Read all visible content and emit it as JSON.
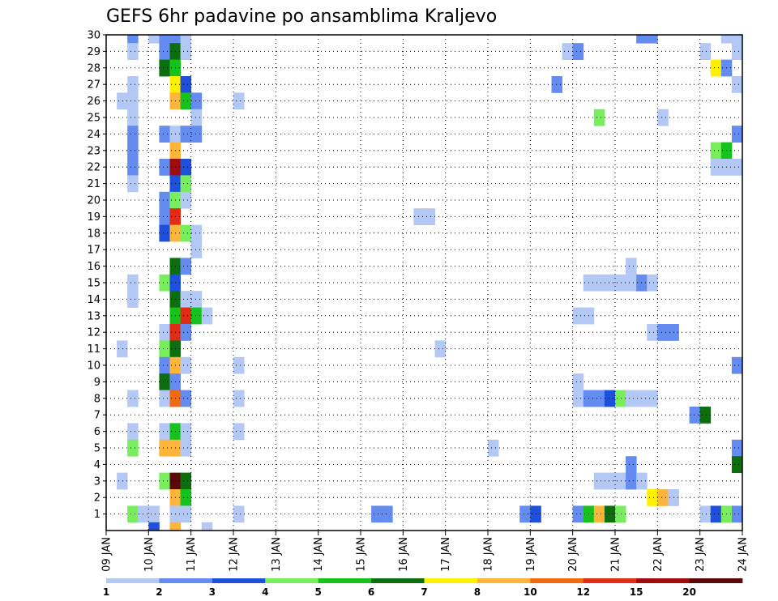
{
  "chart_data": {
    "type": "heatmap",
    "title": "GEFS 6hr padavine po ansamblima Kraljevo",
    "xlabel": "",
    "ylabel": "",
    "x_ticks": [
      "09 JAN",
      "10 JAN",
      "11 JAN",
      "12 JAN",
      "13 JAN",
      "14 JAN",
      "15 JAN",
      "16 JAN",
      "17 JAN",
      "18 JAN",
      "19 JAN",
      "20 JAN",
      "21 JAN",
      "22 JAN",
      "23 JAN",
      "24 JAN"
    ],
    "xlim": [
      0,
      60
    ],
    "y_ticks": [
      "1",
      "2",
      "3",
      "4",
      "5",
      "6",
      "7",
      "8",
      "9",
      "10",
      "11",
      "12",
      "13",
      "14",
      "15",
      "16",
      "17",
      "18",
      "19",
      "20",
      "21",
      "22",
      "23",
      "24",
      "25",
      "26",
      "27",
      "28",
      "29",
      "30"
    ],
    "ylim": [
      0,
      30
    ],
    "grid": true,
    "colorbar": {
      "labels": [
        "1",
        "2",
        "3",
        "4",
        "5",
        "6",
        "7",
        "8",
        "10",
        "12",
        "15",
        "20"
      ],
      "colors": [
        "#b4c8f5",
        "#648cf0",
        "#1e50dc",
        "#78ee5c",
        "#16c21c",
        "#0c6e0e",
        "#fff000",
        "#ffb43a",
        "#f06a10",
        "#e02c14",
        "#a00c0c",
        "#5a0808"
      ]
    },
    "cells": [
      [
        2,
        30,
        2
      ],
      [
        4,
        30,
        1
      ],
      [
        5,
        30,
        2
      ],
      [
        6,
        30,
        2
      ],
      [
        7,
        30,
        1
      ],
      [
        50,
        30,
        2
      ],
      [
        51,
        30,
        2
      ],
      [
        58,
        30,
        1
      ],
      [
        59,
        30,
        1
      ],
      [
        2,
        29,
        1
      ],
      [
        5,
        29,
        2
      ],
      [
        6,
        29,
        6
      ],
      [
        7,
        29,
        1
      ],
      [
        43,
        29,
        1
      ],
      [
        44,
        29,
        2
      ],
      [
        56,
        29,
        1
      ],
      [
        59,
        29,
        1
      ],
      [
        5,
        28,
        6
      ],
      [
        6,
        28,
        5
      ],
      [
        57,
        28,
        7
      ],
      [
        58,
        28,
        2
      ],
      [
        2,
        27,
        1
      ],
      [
        6,
        27,
        7
      ],
      [
        7,
        27,
        3
      ],
      [
        42,
        27,
        2
      ],
      [
        59,
        27,
        1
      ],
      [
        1,
        26,
        1
      ],
      [
        2,
        26,
        1
      ],
      [
        6,
        26,
        8
      ],
      [
        7,
        26,
        5
      ],
      [
        8,
        26,
        2
      ],
      [
        12,
        26,
        1
      ],
      [
        2,
        25,
        1
      ],
      [
        8,
        25,
        1
      ],
      [
        46,
        25,
        4
      ],
      [
        52,
        25,
        1
      ],
      [
        2,
        24,
        2
      ],
      [
        5,
        24,
        2
      ],
      [
        6,
        24,
        1
      ],
      [
        7,
        24,
        2
      ],
      [
        8,
        24,
        2
      ],
      [
        59,
        24,
        2
      ],
      [
        2,
        23,
        2
      ],
      [
        6,
        23,
        8
      ],
      [
        57,
        23,
        4
      ],
      [
        58,
        23,
        5
      ],
      [
        2,
        22,
        2
      ],
      [
        5,
        22,
        2
      ],
      [
        6,
        22,
        11
      ],
      [
        7,
        22,
        3
      ],
      [
        57,
        22,
        1
      ],
      [
        58,
        22,
        1
      ],
      [
        59,
        22,
        1
      ],
      [
        2,
        21,
        1
      ],
      [
        6,
        21,
        3
      ],
      [
        7,
        21,
        4
      ],
      [
        5,
        20,
        2
      ],
      [
        6,
        20,
        4
      ],
      [
        7,
        20,
        1
      ],
      [
        5,
        19,
        2
      ],
      [
        6,
        19,
        10
      ],
      [
        29,
        19,
        1
      ],
      [
        30,
        19,
        1
      ],
      [
        5,
        18,
        3
      ],
      [
        6,
        18,
        8
      ],
      [
        7,
        18,
        4
      ],
      [
        8,
        18,
        1
      ],
      [
        8,
        17,
        1
      ],
      [
        6,
        16,
        6
      ],
      [
        7,
        16,
        2
      ],
      [
        49,
        16,
        1
      ],
      [
        2,
        15,
        1
      ],
      [
        5,
        15,
        4
      ],
      [
        6,
        15,
        3
      ],
      [
        45,
        15,
        1
      ],
      [
        46,
        15,
        1
      ],
      [
        47,
        15,
        1
      ],
      [
        48,
        15,
        1
      ],
      [
        49,
        15,
        1
      ],
      [
        50,
        15,
        2
      ],
      [
        51,
        15,
        1
      ],
      [
        2,
        14,
        1
      ],
      [
        6,
        14,
        6
      ],
      [
        7,
        14,
        1
      ],
      [
        8,
        14,
        1
      ],
      [
        6,
        13,
        5
      ],
      [
        7,
        13,
        10
      ],
      [
        8,
        13,
        5
      ],
      [
        9,
        13,
        1
      ],
      [
        44,
        13,
        1
      ],
      [
        45,
        13,
        1
      ],
      [
        5,
        12,
        1
      ],
      [
        6,
        12,
        10
      ],
      [
        7,
        12,
        2
      ],
      [
        51,
        12,
        1
      ],
      [
        52,
        12,
        2
      ],
      [
        53,
        12,
        2
      ],
      [
        1,
        11,
        1
      ],
      [
        5,
        11,
        4
      ],
      [
        6,
        11,
        6
      ],
      [
        31,
        11,
        1
      ],
      [
        5,
        10,
        2
      ],
      [
        6,
        10,
        8
      ],
      [
        7,
        10,
        1
      ],
      [
        12,
        10,
        1
      ],
      [
        59,
        10,
        2
      ],
      [
        5,
        9,
        6
      ],
      [
        6,
        9,
        2
      ],
      [
        44,
        9,
        1
      ],
      [
        2,
        8,
        1
      ],
      [
        5,
        8,
        1
      ],
      [
        6,
        8,
        9
      ],
      [
        7,
        8,
        2
      ],
      [
        12,
        8,
        1
      ],
      [
        44,
        8,
        1
      ],
      [
        45,
        8,
        2
      ],
      [
        46,
        8,
        2
      ],
      [
        47,
        8,
        3
      ],
      [
        48,
        8,
        4
      ],
      [
        49,
        8,
        1
      ],
      [
        50,
        8,
        1
      ],
      [
        51,
        8,
        1
      ],
      [
        55,
        7,
        2
      ],
      [
        56,
        7,
        6
      ],
      [
        2,
        6,
        1
      ],
      [
        5,
        6,
        1
      ],
      [
        6,
        6,
        5
      ],
      [
        7,
        6,
        1
      ],
      [
        12,
        6,
        1
      ],
      [
        2,
        5,
        4
      ],
      [
        5,
        5,
        8
      ],
      [
        6,
        5,
        8
      ],
      [
        7,
        5,
        1
      ],
      [
        36,
        5,
        1
      ],
      [
        59,
        5,
        2
      ],
      [
        49,
        4,
        2
      ],
      [
        59,
        4,
        6
      ],
      [
        1,
        3,
        1
      ],
      [
        5,
        3,
        4
      ],
      [
        6,
        3,
        12
      ],
      [
        7,
        3,
        6
      ],
      [
        46,
        3,
        1
      ],
      [
        47,
        3,
        1
      ],
      [
        48,
        3,
        1
      ],
      [
        49,
        3,
        2
      ],
      [
        50,
        3,
        1
      ],
      [
        6,
        2,
        8
      ],
      [
        7,
        2,
        5
      ],
      [
        51,
        2,
        7
      ],
      [
        52,
        2,
        8
      ],
      [
        53,
        2,
        1
      ],
      [
        2,
        1,
        4
      ],
      [
        3,
        1,
        1
      ],
      [
        4,
        1,
        1
      ],
      [
        6,
        1,
        1
      ],
      [
        7,
        1,
        1
      ],
      [
        12,
        1,
        1
      ],
      [
        25,
        1,
        2
      ],
      [
        26,
        1,
        2
      ],
      [
        39,
        1,
        2
      ],
      [
        40,
        1,
        3
      ],
      [
        44,
        1,
        2
      ],
      [
        45,
        1,
        5
      ],
      [
        46,
        1,
        8
      ],
      [
        47,
        1,
        6
      ],
      [
        48,
        1,
        4
      ],
      [
        56,
        1,
        1
      ],
      [
        57,
        1,
        3
      ],
      [
        58,
        1,
        4
      ],
      [
        59,
        1,
        2
      ],
      [
        4,
        0,
        3
      ],
      [
        6,
        0,
        8
      ],
      [
        9,
        0,
        1
      ]
    ]
  }
}
